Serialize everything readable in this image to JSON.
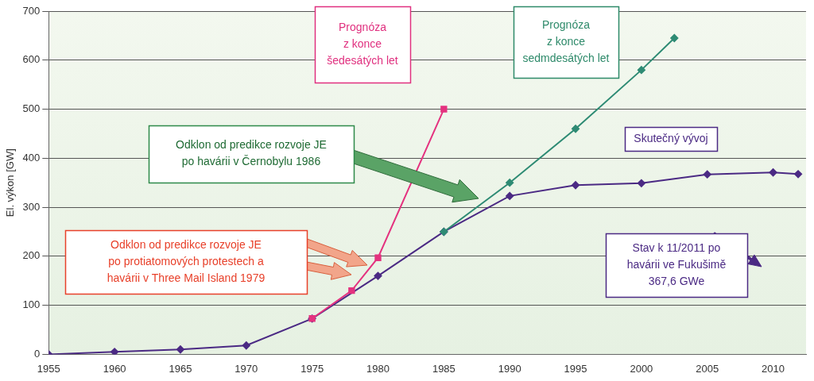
{
  "chart_data": {
    "type": "line",
    "ylabel": "El. výkon [GW]",
    "xlim": [
      1955,
      2012.5
    ],
    "xticks": [
      1955,
      1960,
      1965,
      1970,
      1975,
      1980,
      1985,
      1990,
      1995,
      2000,
      2005,
      2010
    ],
    "ylim": [
      0,
      700
    ],
    "yticks": [
      0,
      100,
      200,
      300,
      400,
      500,
      600,
      700
    ],
    "grid": true,
    "series": [
      {
        "color": "#e4327f",
        "marker": "square",
        "x": [
          1975,
          1978,
          1980,
          1985
        ],
        "values": [
          73,
          130,
          197,
          500
        ]
      },
      {
        "color": "#2e8b74",
        "marker": "diamond",
        "x": [
          1985,
          1990,
          1995,
          2000,
          2002.5
        ],
        "values": [
          250,
          350,
          460,
          580,
          645
        ]
      },
      {
        "color": "#4b2a84",
        "marker": "diamond",
        "x": [
          1955,
          1960,
          1965,
          1970,
          1975,
          1980,
          1985,
          1990,
          1995,
          2000,
          2005,
          2010,
          2011.9
        ],
        "values": [
          0,
          5,
          10,
          18,
          73,
          160,
          250,
          323,
          345,
          349,
          367,
          371,
          367.6
        ]
      }
    ],
    "annotations": [
      {
        "text": [
          "Prognóza",
          "z konce",
          "šedesátých let"
        ],
        "color": "#e0307f"
      },
      {
        "text": [
          "Prognóza",
          "z konce",
          "sedmdesátých let"
        ],
        "color": "#2e8a6a"
      },
      {
        "text": [
          "Odklon od predikce rozvoje JE",
          "po havárii v Černobylu 1986"
        ],
        "color": "#1f6b34"
      },
      {
        "text": [
          "Skutečný vývoj"
        ],
        "color": "#4b2a84"
      },
      {
        "text": [
          "Odklon od predikce rozvoje JE",
          "po protiatomových protestech a",
          "havárii v Three Mail Island 1979"
        ],
        "color": "#e8402a"
      },
      {
        "text": [
          "Stav k 11/2011 po",
          "havárii ve Fukušimě",
          "367,6 GWe"
        ],
        "color": "#4b2a84"
      }
    ]
  }
}
